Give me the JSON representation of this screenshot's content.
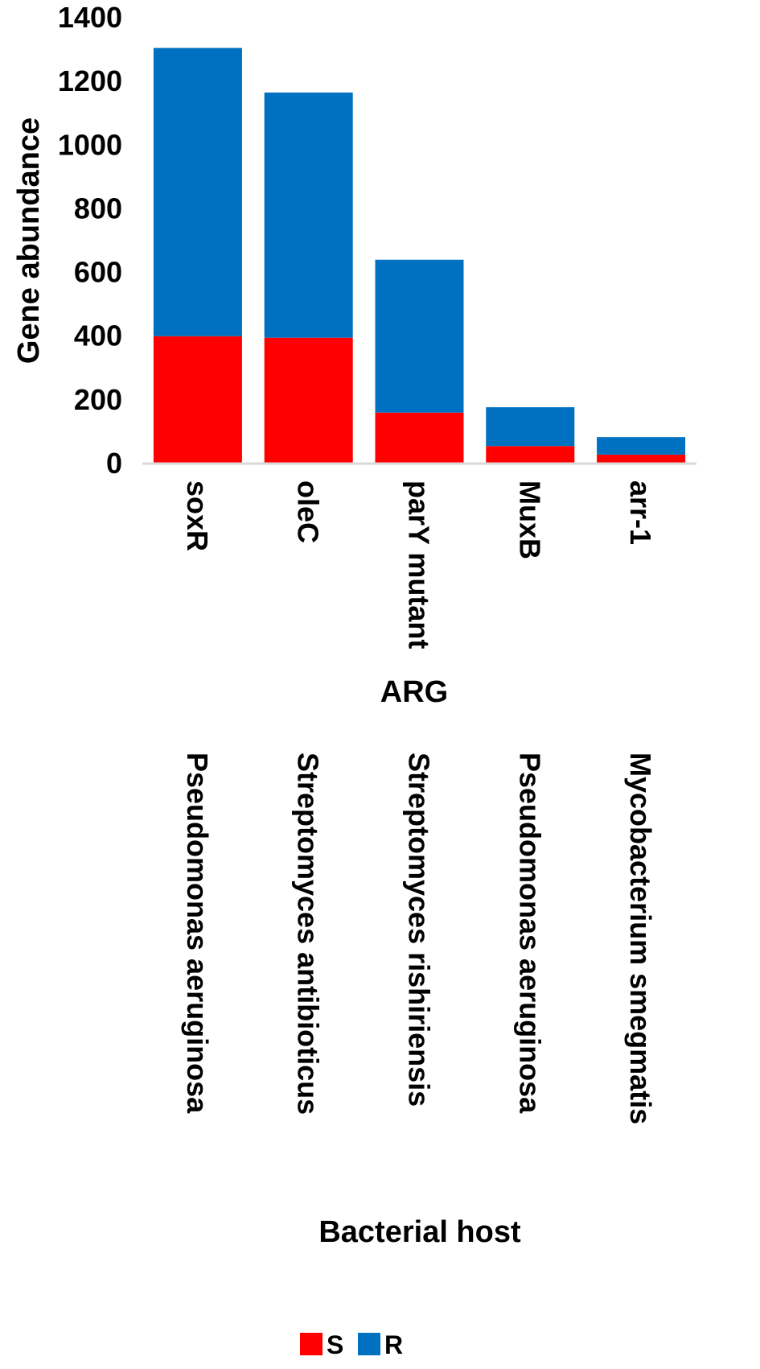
{
  "colors": {
    "S": "#ff0000",
    "R": "#0070c0",
    "axis": "#d9d9d9",
    "text": "#000000"
  },
  "chart_data": {
    "type": "bar",
    "stacked": true,
    "categories": [
      "soxR",
      "oleC",
      "parY mutant",
      "MuxB",
      "arr-1"
    ],
    "hosts": [
      "Pseudomonas aeruginosa",
      "Streptomyces antibioticus",
      "Streptomyces rishiriensis",
      "Pseudomonas aeruginosa",
      "Mycobacterium smegmatis"
    ],
    "series": [
      {
        "name": "S",
        "values": [
          400,
          395,
          160,
          55,
          28
        ]
      },
      {
        "name": "R",
        "values": [
          905,
          770,
          480,
          122,
          55
        ]
      }
    ],
    "ylabel": "Gene abundance",
    "xlabel": "ARG",
    "xlabel2": "Bacterial host",
    "ylim": [
      0,
      1400
    ],
    "yticks": [
      "0",
      "200",
      "400",
      "600",
      "800",
      "1000",
      "1200",
      "1400"
    ],
    "grid": false,
    "legend_position": "bottom"
  }
}
